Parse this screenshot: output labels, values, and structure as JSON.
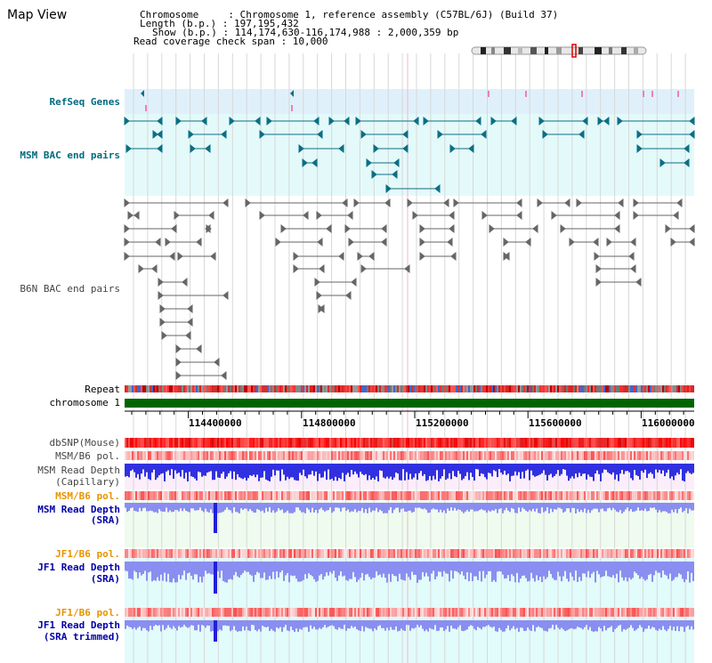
{
  "header": {
    "view_title": "Map View",
    "chromosome_line": "Chromosome     : Chromosome 1, reference assembly (C57BL/6J) (Build 37)",
    "length_line": "Length (b.p.) : 197,195,432",
    "show_line": "Show (b.p.) : 114,174,630-116,174,988 : 2,000,359 bp",
    "coverage_line": "Read coverage check span : 10,000"
  },
  "tracks": {
    "refseq": "RefSeq Genes",
    "msm_bac": "MSM BAC end pairs",
    "b6n_bac": "B6N BAC end pairs",
    "repeat": "Repeat",
    "chromosome": "chromosome 1",
    "dbsnp": "dbSNP(Mouse)",
    "msm_b6_pol_1": "MSM/B6 pol.",
    "msm_read_cap_1": "MSM Read Depth",
    "msm_read_cap_2": "(Capillary)",
    "msm_b6_pol_2": "MSM/B6 pol.",
    "msm_read_sra_1": "MSM Read Depth",
    "msm_read_sra_2": "(SRA)",
    "jf1_b6_pol_1": "JF1/B6 pol.",
    "jf1_read_sra_1": "JF1 Read Depth",
    "jf1_read_sra_2": "(SRA)",
    "jf1_b6_pol_2": "JF1/B6 pol.",
    "jf1_read_trim_1": "JF1 Read Depth",
    "jf1_read_trim_2": "(SRA trimmed)"
  },
  "axis": {
    "ticks": [
      "114400000",
      "114800000",
      "115200000",
      "115600000",
      "116000000"
    ]
  },
  "colors": {
    "refseq_bg": "#dff0fb",
    "msm_bg": "#e4fafa",
    "pink_bg": "#fbeefa",
    "green_bg": "#eefbee",
    "cyan_bg": "#e2fbfb",
    "chromosome_bar": "#006400",
    "teal": "#0b6f84",
    "depth_blue": "#3030e0",
    "depth_light": "#8a8ef0"
  }
}
